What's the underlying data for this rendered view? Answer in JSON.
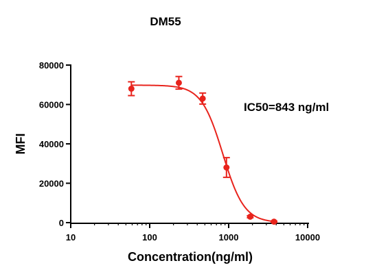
{
  "chart_data": {
    "type": "scatter",
    "title": "DM55",
    "xlabel": "Concentration(ng/ml)",
    "ylabel": "MFI",
    "x_scale": "log",
    "xlim": [
      10,
      10000
    ],
    "ylim": [
      0,
      80000
    ],
    "x_ticks": [
      10,
      100,
      1000,
      10000
    ],
    "x_tick_labels": [
      "10",
      "100",
      "1000",
      "10000"
    ],
    "y_ticks": [
      0,
      20000,
      40000,
      60000,
      80000
    ],
    "y_tick_labels": [
      "0",
      "20000",
      "40000",
      "60000",
      "80000"
    ],
    "grid": false,
    "series": [
      {
        "color": "#e8231c",
        "points": [
          {
            "x": 58.6,
            "y": 68000,
            "err": 3500
          },
          {
            "x": 234,
            "y": 71000,
            "err": 3200
          },
          {
            "x": 469,
            "y": 63000,
            "err": 2800
          },
          {
            "x": 938,
            "y": 28000,
            "err": 5000
          },
          {
            "x": 1875,
            "y": 3000,
            "err": 500
          },
          {
            "x": 3750,
            "y": 500,
            "err": 300
          }
        ],
        "fit": {
          "model": "4PL",
          "top": 69800,
          "bottom": 0,
          "ic50": 843,
          "hill": 3.2
        }
      }
    ],
    "annotation": "IC50=843 ng/ml"
  }
}
